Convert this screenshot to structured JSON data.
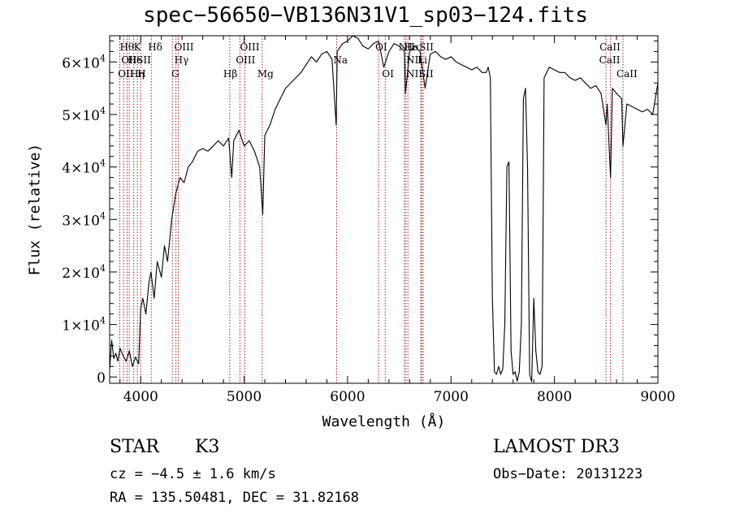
{
  "chart_data": {
    "type": "line",
    "title": "spec−56650−VB136N31V1_sp03−124.fits",
    "xlabel": "Wavelength (Å)",
    "ylabel": "Flux (relative)",
    "xlim": [
      3700,
      9000
    ],
    "ylim": [
      -1200,
      65000
    ],
    "x_ticks": [
      {
        "value": 4000,
        "label": "4000"
      },
      {
        "value": 5000,
        "label": "5000"
      },
      {
        "value": 6000,
        "label": "6000"
      },
      {
        "value": 7000,
        "label": "7000"
      },
      {
        "value": 8000,
        "label": "8000"
      },
      {
        "value": 9000,
        "label": "9000"
      }
    ],
    "y_ticks": [
      {
        "value": 0,
        "mant": "0",
        "exp": ""
      },
      {
        "value": 10000,
        "mant": "1×10",
        "exp": "4"
      },
      {
        "value": 20000,
        "mant": "2×10",
        "exp": "4"
      },
      {
        "value": 30000,
        "mant": "3×10",
        "exp": "4"
      },
      {
        "value": 40000,
        "mant": "4×10",
        "exp": "4"
      },
      {
        "value": 50000,
        "mant": "5×10",
        "exp": "4"
      },
      {
        "value": 60000,
        "mant": "6×10",
        "exp": "4"
      }
    ],
    "spectrum": {
      "name": "flux",
      "x": [
        3700,
        3720,
        3740,
        3760,
        3780,
        3800,
        3830,
        3860,
        3890,
        3920,
        3950,
        3980,
        4000,
        4020,
        4050,
        4080,
        4100,
        4130,
        4160,
        4200,
        4230,
        4260,
        4300,
        4340,
        4380,
        4420,
        4460,
        4500,
        4550,
        4600,
        4650,
        4700,
        4750,
        4800,
        4850,
        4880,
        4900,
        4950,
        5000,
        5050,
        5100,
        5150,
        5180,
        5200,
        5250,
        5300,
        5350,
        5400,
        5450,
        5500,
        5550,
        5600,
        5650,
        5700,
        5750,
        5800,
        5850,
        5890,
        5900,
        5950,
        6000,
        6050,
        6100,
        6150,
        6200,
        6250,
        6300,
        6350,
        6400,
        6450,
        6500,
        6550,
        6560,
        6600,
        6650,
        6700,
        6750,
        6800,
        6850,
        6900,
        6950,
        7000,
        7050,
        7100,
        7150,
        7200,
        7250,
        7300,
        7340,
        7360,
        7380,
        7400,
        7420,
        7440,
        7460,
        7480,
        7500,
        7520,
        7540,
        7560,
        7580,
        7600,
        7620,
        7640,
        7660,
        7680,
        7700,
        7720,
        7740,
        7760,
        7780,
        7800,
        7820,
        7840,
        7860,
        7880,
        7900,
        7950,
        8000,
        8050,
        8100,
        8150,
        8200,
        8250,
        8300,
        8350,
        8400,
        8450,
        8498,
        8510,
        8542,
        8560,
        8600,
        8650,
        8662,
        8700,
        8750,
        8800,
        8850,
        8900,
        8950,
        9000
      ],
      "y": [
        1500,
        7000,
        3500,
        4500,
        3000,
        5500,
        4000,
        3000,
        5000,
        2000,
        3800,
        2500,
        13000,
        15000,
        12000,
        18000,
        20000,
        15000,
        22000,
        19000,
        25000,
        22000,
        30000,
        35000,
        38000,
        37000,
        40000,
        41000,
        43000,
        43500,
        43000,
        44000,
        45000,
        44000,
        45500,
        38000,
        45000,
        47000,
        44000,
        45000,
        43000,
        40000,
        31000,
        46000,
        48000,
        51000,
        53000,
        55000,
        56000,
        57000,
        58000,
        59500,
        61000,
        60000,
        61500,
        62000,
        60500,
        48000,
        62000,
        63500,
        64000,
        65000,
        64500,
        63000,
        62500,
        63500,
        64000,
        59000,
        62000,
        63500,
        63000,
        62000,
        54000,
        62000,
        63000,
        62000,
        55000,
        61500,
        62000,
        61000,
        60500,
        61000,
        60000,
        59500,
        59000,
        58500,
        59000,
        58000,
        58000,
        59000,
        57000,
        15000,
        1000,
        500,
        2000,
        500,
        1500,
        10000,
        40000,
        41000,
        5000,
        500,
        1000,
        -800,
        1000,
        10000,
        53000,
        55000,
        40000,
        500,
        -900,
        15000,
        5000,
        1000,
        500,
        2000,
        57000,
        59000,
        58500,
        58000,
        58000,
        57000,
        56500,
        57000,
        56000,
        55000,
        55500,
        54000,
        48000,
        52000,
        38000,
        55000,
        54000,
        53000,
        44000,
        52000,
        51500,
        51000,
        50500,
        51000,
        50000,
        56000
      ]
    },
    "lines": [
      {
        "wave": 3798,
        "label": "Hθ",
        "row": 1,
        "dx": 0
      },
      {
        "wave": 3835,
        "label": "OII",
        "row": 2,
        "dx": -3
      },
      {
        "wave": 3835,
        "label": "OII",
        "row": 3,
        "dx": -7
      },
      {
        "wave": 3869,
        "label": "He",
        "row": 2,
        "dx": 1
      },
      {
        "wave": 3889,
        "label": "Hη",
        "row": 3,
        "dx": 1
      },
      {
        "wave": 3933,
        "label": "K",
        "row": 1,
        "dx": 0
      },
      {
        "wave": 3968,
        "label": "H",
        "row": 3,
        "dx": 0
      },
      {
        "wave": 4000,
        "label": "SII",
        "row": 2,
        "dx": -5
      },
      {
        "wave": 4102,
        "label": "Hδ",
        "row": 1,
        "dx": -4
      },
      {
        "wave": 4306,
        "label": "G",
        "row": 3,
        "dx": -1
      },
      {
        "wave": 4341,
        "label": "Hγ",
        "row": 2,
        "dx": -2
      },
      {
        "wave": 4363,
        "label": "OIII",
        "row": 1,
        "dx": -5
      },
      {
        "wave": 4861,
        "label": "Hβ",
        "row": 3,
        "dx": -8
      },
      {
        "wave": 4959,
        "label": "OIII",
        "row": 2,
        "dx": -5
      },
      {
        "wave": 5007,
        "label": "OIII",
        "row": 1,
        "dx": -6
      },
      {
        "wave": 5175,
        "label": "Mg",
        "row": 3,
        "dx": -6
      },
      {
        "wave": 5894,
        "label": "Na",
        "row": 2,
        "dx": -4
      },
      {
        "wave": 6300,
        "label": "OI",
        "row": 1,
        "dx": -4
      },
      {
        "wave": 6364,
        "label": "OI",
        "row": 3,
        "dx": -4
      },
      {
        "wave": 6548,
        "label": "NII",
        "row": 1,
        "dx": -7
      },
      {
        "wave": 6563,
        "label": "Hα",
        "row": 1,
        "dx": -2
      },
      {
        "wave": 6583,
        "label": "NII",
        "row": 2,
        "dx": -2
      },
      {
        "wave": 6583,
        "label": "NII",
        "row": 3,
        "dx": -2
      },
      {
        "wave": 6708,
        "label": "Li",
        "row": 2,
        "dx": -4
      },
      {
        "wave": 6716,
        "label": "SII",
        "row": 1,
        "dx": -3
      },
      {
        "wave": 6731,
        "label": "SII",
        "row": 3,
        "dx": -5
      },
      {
        "wave": 8498,
        "label": "CaII",
        "row": 1,
        "dx": -8
      },
      {
        "wave": 8542,
        "label": "CaII",
        "row": 2,
        "dx": -14
      },
      {
        "wave": 8662,
        "label": "CaII",
        "row": 3,
        "dx": -8
      }
    ]
  },
  "info": {
    "object_class": "STAR",
    "subclass": "K3",
    "survey": "LAMOST DR3",
    "cz": "cz = −4.5 ± 1.6 km/s",
    "obs_date": "Obs−Date: 20131223",
    "radec": "RA = 135.50481, DEC =  31.82168"
  },
  "colors": {
    "spectrum": "#000000",
    "line_markers": "#aa0000",
    "axes": "#000000"
  }
}
